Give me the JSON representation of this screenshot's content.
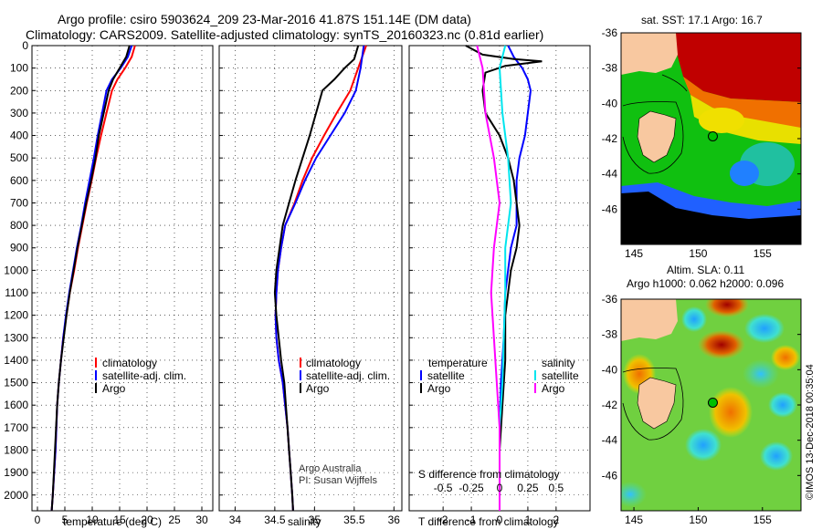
{
  "header": {
    "line1": "Argo profile: csiro 5903624_209 23-Mar-2016 41.87S 151.14E (DM data)",
    "line2": "Climatology: CARS2009. Satellite-adjusted climatology: synTS_20160323.nc (0.81d earlier)"
  },
  "depth_axis": {
    "ylim": [
      2070,
      0
    ],
    "ticks": [
      0,
      100,
      200,
      300,
      400,
      500,
      600,
      700,
      800,
      900,
      1000,
      1100,
      1200,
      1300,
      1400,
      1500,
      1600,
      1700,
      1800,
      1900,
      2000
    ]
  },
  "credits": {
    "org": "Argo Australia",
    "pi": "PI: Susan Wijffels"
  },
  "timestamp": "©IMOS 13-Dec-2018 00:35:04",
  "colors": {
    "climatology": "#ff0000",
    "satellite": "#0000ff",
    "argo": "#000000",
    "cyan": "#00e5ee",
    "magenta": "#ff00ff",
    "land": "#f8c8a0"
  },
  "chart_data": [
    {
      "type": "line",
      "xlabel": "temperature (deg C)",
      "xlim": [
        -1,
        32
      ],
      "xticks": [
        0,
        5,
        10,
        15,
        20,
        25,
        30
      ],
      "legend": [
        "climatology",
        "satellite-adj. clim.",
        "Argo"
      ],
      "series": [
        {
          "name": "climatology",
          "color": "#ff0000",
          "points": [
            [
              17.8,
              0
            ],
            [
              17.2,
              50
            ],
            [
              16.0,
              100
            ],
            [
              14.6,
              150
            ],
            [
              13.6,
              200
            ],
            [
              12.6,
              300
            ],
            [
              11.6,
              400
            ],
            [
              10.7,
              500
            ],
            [
              9.9,
              600
            ],
            [
              9.0,
              700
            ],
            [
              8.2,
              800
            ],
            [
              7.4,
              900
            ],
            [
              6.7,
              1000
            ],
            [
              5.9,
              1100
            ],
            [
              5.3,
              1200
            ],
            [
              4.7,
              1300
            ],
            [
              4.3,
              1400
            ],
            [
              3.9,
              1500
            ],
            [
              3.6,
              1600
            ],
            [
              3.3,
              1800
            ],
            [
              2.8,
              2000
            ],
            [
              2.6,
              2070
            ]
          ]
        },
        {
          "name": "satellite-adj. clim.",
          "color": "#0000ff",
          "points": [
            [
              17.2,
              0
            ],
            [
              16.5,
              50
            ],
            [
              15.2,
              100
            ],
            [
              13.6,
              150
            ],
            [
              12.6,
              200
            ],
            [
              11.8,
              300
            ],
            [
              11.0,
              400
            ],
            [
              10.3,
              500
            ],
            [
              9.5,
              600
            ],
            [
              8.7,
              700
            ],
            [
              8.0,
              800
            ],
            [
              7.2,
              900
            ],
            [
              6.5,
              1000
            ],
            [
              5.8,
              1100
            ],
            [
              5.2,
              1200
            ],
            [
              4.7,
              1300
            ],
            [
              4.3,
              1400
            ],
            [
              3.9,
              1500
            ],
            [
              3.6,
              1600
            ],
            [
              3.3,
              1800
            ],
            [
              2.8,
              2000
            ],
            [
              2.6,
              2070
            ]
          ]
        },
        {
          "name": "Argo",
          "color": "#000000",
          "points": [
            [
              16.8,
              0
            ],
            [
              16.2,
              50
            ],
            [
              15.0,
              100
            ],
            [
              13.8,
              150
            ],
            [
              13.0,
              200
            ],
            [
              12.1,
              300
            ],
            [
              11.2,
              400
            ],
            [
              10.6,
              500
            ],
            [
              9.8,
              600
            ],
            [
              8.9,
              700
            ],
            [
              8.1,
              800
            ],
            [
              7.3,
              900
            ],
            [
              6.6,
              1000
            ],
            [
              5.9,
              1100
            ],
            [
              5.3,
              1200
            ],
            [
              4.8,
              1300
            ],
            [
              4.3,
              1400
            ],
            [
              3.9,
              1500
            ],
            [
              3.6,
              1600
            ],
            [
              3.2,
              1800
            ],
            [
              2.8,
              2000
            ],
            [
              2.6,
              2070
            ]
          ]
        }
      ]
    },
    {
      "type": "line",
      "xlabel": "salinity",
      "xlim": [
        33.8,
        36.1
      ],
      "xticks": [
        34,
        34.5,
        35,
        35.5,
        36
      ],
      "legend": [
        "climatology",
        "satellite-adj. clim.",
        "Argo"
      ],
      "series": [
        {
          "name": "climatology",
          "color": "#ff0000",
          "points": [
            [
              35.65,
              0
            ],
            [
              35.55,
              100
            ],
            [
              35.45,
              200
            ],
            [
              35.28,
              300
            ],
            [
              35.12,
              400
            ],
            [
              34.97,
              500
            ],
            [
              34.85,
              600
            ],
            [
              34.75,
              700
            ],
            [
              34.63,
              800
            ],
            [
              34.58,
              900
            ],
            [
              34.54,
              1000
            ],
            [
              34.52,
              1100
            ],
            [
              34.51,
              1200
            ],
            [
              34.52,
              1300
            ],
            [
              34.55,
              1400
            ],
            [
              34.6,
              1500
            ],
            [
              34.63,
              1600
            ],
            [
              34.66,
              1700
            ],
            [
              34.68,
              1800
            ],
            [
              34.7,
              1900
            ],
            [
              34.72,
              2000
            ],
            [
              34.73,
              2070
            ]
          ]
        },
        {
          "name": "satellite-adj. clim.",
          "color": "#0000ff",
          "points": [
            [
              35.62,
              0
            ],
            [
              35.58,
              100
            ],
            [
              35.52,
              200
            ],
            [
              35.38,
              300
            ],
            [
              35.2,
              400
            ],
            [
              35.02,
              500
            ],
            [
              34.88,
              600
            ],
            [
              34.76,
              700
            ],
            [
              34.63,
              800
            ],
            [
              34.58,
              900
            ],
            [
              34.54,
              1000
            ],
            [
              34.52,
              1100
            ],
            [
              34.51,
              1200
            ],
            [
              34.52,
              1300
            ],
            [
              34.55,
              1400
            ],
            [
              34.6,
              1500
            ],
            [
              34.63,
              1600
            ],
            [
              34.66,
              1700
            ],
            [
              34.68,
              1800
            ],
            [
              34.7,
              1900
            ],
            [
              34.72,
              2000
            ],
            [
              34.73,
              2070
            ]
          ]
        },
        {
          "name": "Argo",
          "color": "#000000",
          "points": [
            [
              35.55,
              0
            ],
            [
              35.5,
              60
            ],
            [
              35.38,
              100
            ],
            [
              35.25,
              150
            ],
            [
              35.1,
              200
            ],
            [
              35.02,
              300
            ],
            [
              34.94,
              400
            ],
            [
              34.85,
              500
            ],
            [
              34.76,
              600
            ],
            [
              34.68,
              700
            ],
            [
              34.6,
              800
            ],
            [
              34.56,
              900
            ],
            [
              34.52,
              1000
            ],
            [
              34.5,
              1100
            ],
            [
              34.52,
              1200
            ],
            [
              34.55,
              1300
            ],
            [
              34.58,
              1400
            ],
            [
              34.62,
              1500
            ],
            [
              34.64,
              1600
            ],
            [
              34.66,
              1700
            ],
            [
              34.68,
              1800
            ],
            [
              34.7,
              1900
            ],
            [
              34.72,
              2000
            ],
            [
              34.73,
              2070
            ]
          ]
        }
      ]
    },
    {
      "type": "line",
      "xlabel": "T difference from climatology",
      "xlim": [
        -3.2,
        3.2
      ],
      "xticks": [
        -2,
        -1,
        0,
        1,
        2
      ],
      "top_label": "S difference from climatology",
      "top_ticks": [
        [
          "-0.5",
          -2.0
        ],
        [
          "-0.25",
          -1.0
        ],
        [
          "0",
          0
        ],
        [
          "0.25",
          1.0
        ],
        [
          "0.5",
          2.0
        ]
      ],
      "legend_left": {
        "title": "temperature",
        "items": [
          "satellite",
          "Argo"
        ]
      },
      "legend_right": {
        "title": "salinity",
        "items": [
          "satellite",
          "Argo"
        ]
      },
      "series": [
        {
          "name": "T satellite",
          "color": "#0000ff",
          "points": [
            [
              0.3,
              0
            ],
            [
              0.5,
              50
            ],
            [
              0.8,
              100
            ],
            [
              1.0,
              150
            ],
            [
              1.1,
              200
            ],
            [
              1.0,
              300
            ],
            [
              0.9,
              400
            ],
            [
              0.7,
              500
            ],
            [
              0.6,
              600
            ],
            [
              0.6,
              700
            ],
            [
              0.6,
              800
            ],
            [
              0.4,
              900
            ],
            [
              0.3,
              1000
            ],
            [
              0.2,
              1100
            ],
            [
              0.15,
              1300
            ],
            [
              0.05,
              1500
            ],
            [
              0,
              1700
            ],
            [
              0,
              2000
            ],
            [
              0,
              2070
            ]
          ]
        },
        {
          "name": "T Argo",
          "color": "#000000",
          "points": [
            [
              -1.2,
              0
            ],
            [
              -0.6,
              40
            ],
            [
              0.5,
              60
            ],
            [
              1.5,
              70
            ],
            [
              0.2,
              90
            ],
            [
              -0.5,
              120
            ],
            [
              -0.6,
              200
            ],
            [
              -0.5,
              300
            ],
            [
              0,
              400
            ],
            [
              0.3,
              500
            ],
            [
              0.5,
              600
            ],
            [
              0.6,
              700
            ],
            [
              0.7,
              800
            ],
            [
              0.6,
              900
            ],
            [
              0.4,
              1000
            ],
            [
              0.3,
              1100
            ],
            [
              0.2,
              1200
            ],
            [
              0.2,
              1400
            ],
            [
              0.1,
              1600
            ],
            [
              0,
              1800
            ],
            [
              0,
              2000
            ],
            [
              0,
              2070
            ]
          ]
        },
        {
          "name": "S satellite",
          "color": "#00e5ee",
          "points": [
            [
              0.2,
              0
            ],
            [
              0,
              100
            ],
            [
              0.1,
              300
            ],
            [
              0.3,
              500
            ],
            [
              0.4,
              700
            ],
            [
              0.2,
              900
            ],
            [
              0.2,
              1100
            ],
            [
              0.15,
              1300
            ],
            [
              0.1,
              1500
            ],
            [
              0,
              1700
            ],
            [
              0,
              2000
            ],
            [
              0,
              2070
            ]
          ]
        },
        {
          "name": "S Argo",
          "color": "#ff00ff",
          "points": [
            [
              -0.8,
              0
            ],
            [
              -0.6,
              100
            ],
            [
              -0.5,
              300
            ],
            [
              -0.2,
              500
            ],
            [
              0,
              700
            ],
            [
              -0.2,
              900
            ],
            [
              -0.3,
              1100
            ],
            [
              -0.2,
              1300
            ],
            [
              -0.1,
              1500
            ],
            [
              0,
              1700
            ],
            [
              0,
              2000
            ],
            [
              0,
              2070
            ]
          ]
        }
      ]
    }
  ],
  "maps": [
    {
      "title": "sat. SST: 17.1 Argo: 16.7",
      "subtitle": "",
      "xlim": [
        144,
        158
      ],
      "ylim": [
        -48,
        -36
      ],
      "xticks": [
        145,
        150,
        155
      ],
      "yticks": [
        -36,
        -38,
        -40,
        -42,
        -44,
        -46
      ],
      "marker": [
        151.14,
        -41.87
      ]
    },
    {
      "title": "Altim. SLA: 0.11",
      "subtitle": "Argo h1000: 0.062 h2000: 0.096",
      "xlim": [
        144,
        158
      ],
      "ylim": [
        -48,
        -36
      ],
      "xticks": [
        145,
        150,
        155
      ],
      "yticks": [
        -36,
        -38,
        -40,
        -42,
        -44,
        -46
      ],
      "marker": [
        151.14,
        -41.87
      ]
    }
  ]
}
